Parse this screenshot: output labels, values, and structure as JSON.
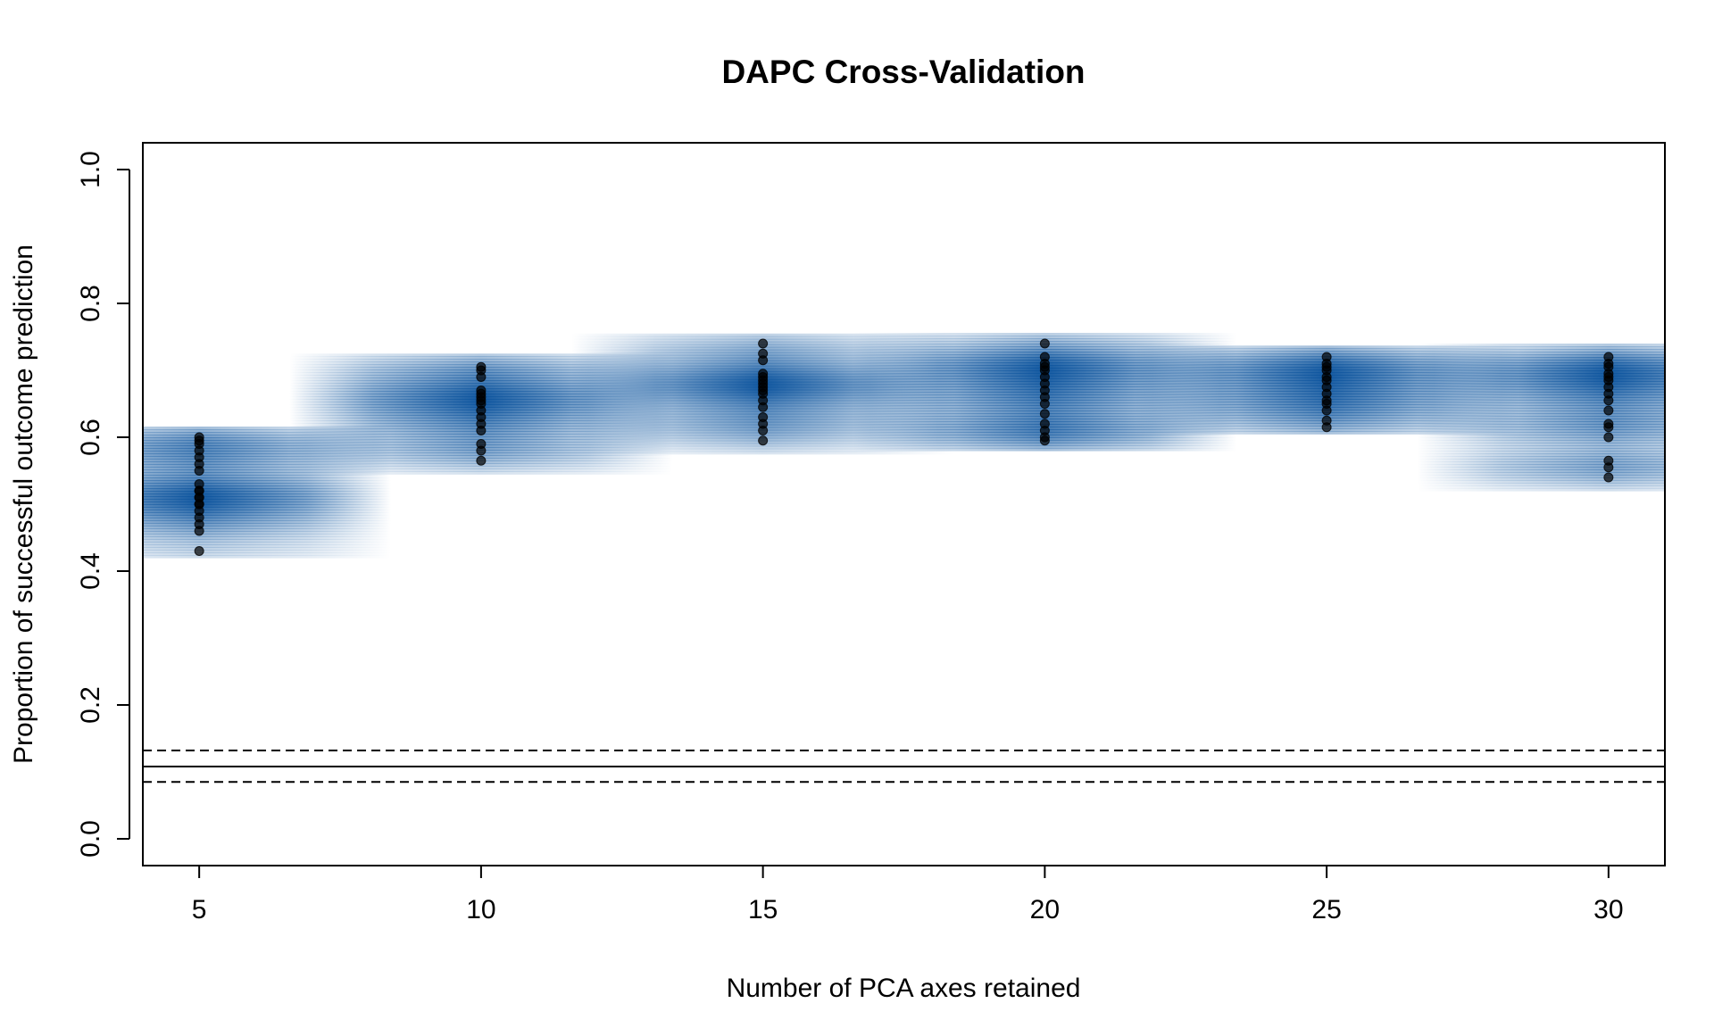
{
  "chart_data": {
    "type": "scatter",
    "title": "DAPC Cross-Validation",
    "xlabel": "Number of PCA axes retained",
    "ylabel": "Proportion of successful outcome prediction",
    "xlim": [
      4,
      31
    ],
    "ylim": [
      -0.04,
      1.04
    ],
    "x_ticks": [
      5,
      10,
      15,
      20,
      25,
      30
    ],
    "y_ticks": [
      0.0,
      0.2,
      0.4,
      0.6,
      0.8,
      1.0
    ],
    "x_tick_labels": [
      "5",
      "10",
      "15",
      "20",
      "25",
      "30"
    ],
    "y_tick_labels": [
      "0.0",
      "0.2",
      "0.4",
      "0.6",
      "0.8",
      "1.0"
    ],
    "reference_lines": {
      "mean": 0.108,
      "lower": 0.085,
      "upper": 0.132
    },
    "colors": {
      "density": "#08519c",
      "points": "#000000"
    },
    "groups": [
      {
        "x": 5,
        "values": [
          0.43,
          0.46,
          0.47,
          0.48,
          0.49,
          0.5,
          0.5,
          0.51,
          0.51,
          0.52,
          0.52,
          0.53,
          0.55,
          0.56,
          0.57,
          0.58,
          0.59,
          0.595,
          0.6
        ],
        "density_range": [
          0.42,
          0.615
        ]
      },
      {
        "x": 10,
        "values": [
          0.565,
          0.58,
          0.59,
          0.61,
          0.62,
          0.63,
          0.64,
          0.65,
          0.655,
          0.66,
          0.665,
          0.67,
          0.69,
          0.7,
          0.705
        ],
        "density_range": [
          0.545,
          0.725
        ]
      },
      {
        "x": 15,
        "values": [
          0.595,
          0.61,
          0.62,
          0.63,
          0.645,
          0.655,
          0.665,
          0.67,
          0.675,
          0.68,
          0.685,
          0.69,
          0.695,
          0.715,
          0.725,
          0.74
        ],
        "density_range": [
          0.575,
          0.755
        ]
      },
      {
        "x": 20,
        "values": [
          0.595,
          0.6,
          0.61,
          0.62,
          0.635,
          0.65,
          0.66,
          0.67,
          0.68,
          0.69,
          0.7,
          0.705,
          0.71,
          0.72,
          0.74
        ],
        "density_range": [
          0.58,
          0.755
        ]
      },
      {
        "x": 25,
        "values": [
          0.615,
          0.625,
          0.64,
          0.65,
          0.655,
          0.665,
          0.675,
          0.685,
          0.69,
          0.7,
          0.705,
          0.71,
          0.72
        ],
        "density_range": [
          0.605,
          0.735
        ]
      },
      {
        "x": 30,
        "values": [
          0.54,
          0.555,
          0.565,
          0.6,
          0.615,
          0.62,
          0.64,
          0.655,
          0.665,
          0.675,
          0.685,
          0.69,
          0.695,
          0.705,
          0.71,
          0.72
        ],
        "density_range": [
          0.52,
          0.74
        ]
      }
    ]
  }
}
